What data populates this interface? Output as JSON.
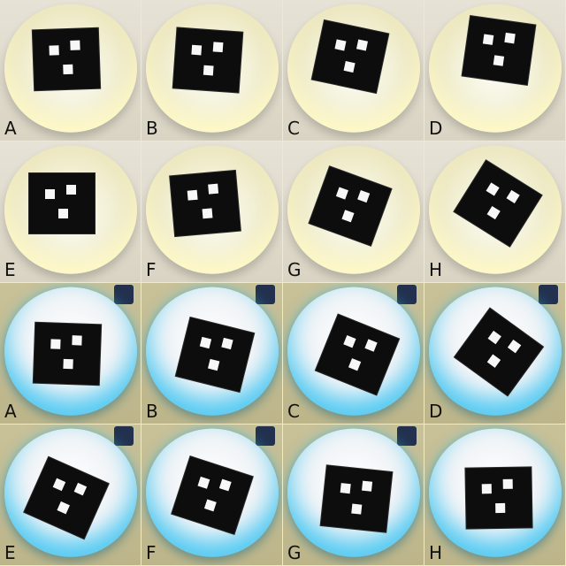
{
  "panels": [
    {
      "label": "A",
      "lighting": "warm"
    },
    {
      "label": "B",
      "lighting": "warm"
    },
    {
      "label": "C",
      "lighting": "warm"
    },
    {
      "label": "D",
      "lighting": "warm"
    },
    {
      "label": "E",
      "lighting": "warm"
    },
    {
      "label": "F",
      "lighting": "warm"
    },
    {
      "label": "G",
      "lighting": "warm"
    },
    {
      "label": "H",
      "lighting": "warm"
    },
    {
      "label": "A",
      "lighting": "cool"
    },
    {
      "label": "B",
      "lighting": "cool"
    },
    {
      "label": "C",
      "lighting": "cool"
    },
    {
      "label": "D",
      "lighting": "cool"
    },
    {
      "label": "E",
      "lighting": "cool"
    },
    {
      "label": "F",
      "lighting": "cool"
    },
    {
      "label": "G",
      "lighting": "cool"
    },
    {
      "label": "H",
      "lighting": "cool"
    }
  ],
  "colors": {
    "warm_glow": "#f3f1d8",
    "cool_glow": "#2ec3f0",
    "marker": "#0d0d0d",
    "marker_cell": "#f7f7f7"
  }
}
